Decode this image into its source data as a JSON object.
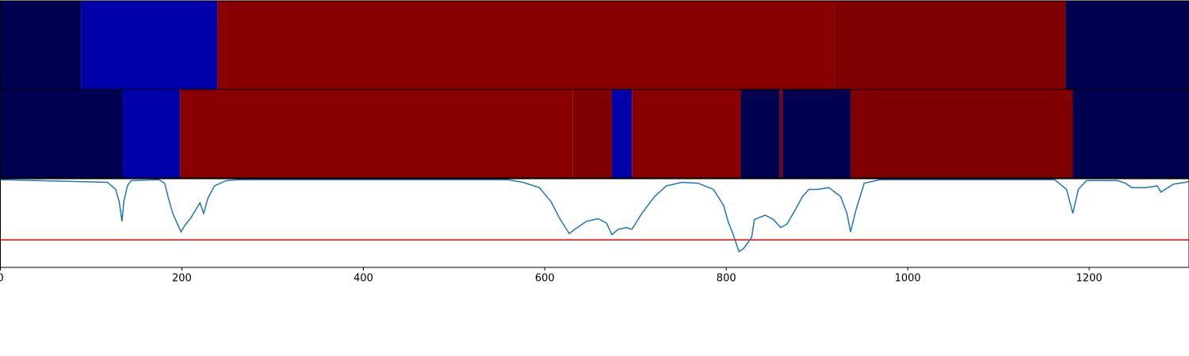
{
  "chart_data": [
    {
      "type": "segments",
      "xlim": [
        0,
        1310
      ],
      "segments": [
        {
          "start": 0,
          "end": 89,
          "color": "#000050"
        },
        {
          "start": 89,
          "end": 239,
          "color": "#0000aa"
        },
        {
          "start": 239,
          "end": 919,
          "color": "#880000"
        },
        {
          "start": 919,
          "end": 1174,
          "color": "#7f0000"
        },
        {
          "start": 1174,
          "end": 1310,
          "color": "#000050"
        }
      ]
    },
    {
      "type": "segments",
      "xlim": [
        0,
        1310
      ],
      "segments": [
        {
          "start": 0,
          "end": 135,
          "color": "#000050"
        },
        {
          "start": 135,
          "end": 198,
          "color": "#0000aa"
        },
        {
          "start": 198,
          "end": 631,
          "color": "#880000"
        },
        {
          "start": 631,
          "end": 674,
          "color": "#7f0000"
        },
        {
          "start": 674,
          "end": 696,
          "color": "#0000aa"
        },
        {
          "start": 696,
          "end": 816,
          "color": "#880000"
        },
        {
          "start": 816,
          "end": 859,
          "color": "#000050"
        },
        {
          "start": 859,
          "end": 862,
          "color": "#880000"
        },
        {
          "start": 862,
          "end": 937,
          "color": "#000050"
        },
        {
          "start": 937,
          "end": 1182,
          "color": "#7f0000"
        },
        {
          "start": 1182,
          "end": 1310,
          "color": "#000050"
        }
      ]
    },
    {
      "type": "line",
      "xlim": [
        0,
        1310
      ],
      "ylim": [
        0,
        1
      ],
      "xticks": [
        0,
        200,
        400,
        600,
        800,
        1000,
        1200
      ],
      "x": [
        0,
        118,
        127,
        131,
        134,
        136,
        140,
        144,
        175,
        181,
        185,
        190,
        196,
        199,
        203,
        210,
        217,
        220,
        224,
        229,
        236,
        249,
        262,
        559,
        576,
        594,
        607,
        616,
        627,
        633,
        646,
        659,
        668,
        674,
        681,
        690,
        696,
        707,
        721,
        734,
        751,
        769,
        786,
        797,
        802,
        808,
        814,
        819,
        828,
        831,
        843,
        852,
        860,
        867,
        876,
        884,
        891,
        900,
        913,
        926,
        933,
        937,
        943,
        952,
        969,
        1162,
        1175,
        1182,
        1188,
        1197,
        1231,
        1240,
        1247,
        1262,
        1275,
        1279,
        1293,
        1306,
        1310
      ],
      "series": [
        {
          "color": "#1f77b4",
          "values": [
            0.99,
            0.96,
            0.88,
            0.74,
            0.52,
            0.74,
            0.92,
            0.98,
            0.99,
            0.95,
            0.79,
            0.61,
            0.47,
            0.4,
            0.47,
            0.56,
            0.68,
            0.73,
            0.61,
            0.79,
            0.92,
            0.98,
            0.99,
            0.99,
            0.96,
            0.9,
            0.74,
            0.56,
            0.38,
            0.43,
            0.52,
            0.55,
            0.5,
            0.37,
            0.43,
            0.45,
            0.43,
            0.61,
            0.8,
            0.92,
            0.96,
            0.95,
            0.88,
            0.7,
            0.52,
            0.36,
            0.18,
            0.21,
            0.34,
            0.54,
            0.59,
            0.54,
            0.45,
            0.49,
            0.65,
            0.8,
            0.88,
            0.88,
            0.9,
            0.8,
            0.61,
            0.4,
            0.65,
            0.95,
            0.99,
            0.99,
            0.88,
            0.61,
            0.88,
            0.98,
            0.98,
            0.95,
            0.9,
            0.9,
            0.92,
            0.85,
            0.94,
            0.96,
            0.97
          ]
        }
      ],
      "hline": {
        "value": 0.31,
        "color": "#ff0000"
      }
    }
  ]
}
